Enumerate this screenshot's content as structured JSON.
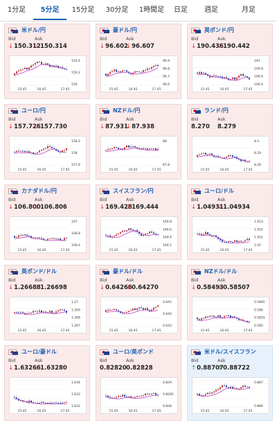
{
  "tabs": [
    {
      "label": "1分足",
      "active": false
    },
    {
      "label": "5分足",
      "active": true
    },
    {
      "label": "15分足",
      "active": false
    },
    {
      "label": "30分足",
      "active": false
    },
    {
      "label": "1時間足",
      "active": false
    },
    {
      "label": "日足",
      "active": false
    },
    {
      "label": "週足",
      "active": false
    },
    {
      "label": "月足",
      "active": false
    }
  ],
  "labels": {
    "bid": "Bid",
    "ask": "Ask"
  },
  "pairs": [
    {
      "name": "米ドル/円",
      "bid": "150.312",
      "ask": "150.314",
      "dir": "down",
      "y_ticks": [
        "150.4",
        "150.2",
        "150"
      ],
      "x_ticks": [
        "15:45",
        "16:45",
        "17:45"
      ]
    },
    {
      "name": "豪ドル/円",
      "bid": "96.602",
      "ask": "96.607",
      "dir": "down",
      "y_ticks": [
        "96.9",
        "96.8",
        "96.7",
        "96.6"
      ],
      "x_ticks": [
        "15:45",
        "16:45",
        "17:45"
      ]
    },
    {
      "name": "英ポンド/円",
      "bid": "190.436",
      "ask": "190.442",
      "dir": "down",
      "y_ticks": [
        "191",
        "190.8",
        "190.6",
        "190.4"
      ],
      "x_ticks": [
        "15:45",
        "16:45",
        "17:45"
      ]
    },
    {
      "name": "ユーロ/円",
      "bid": "157.726",
      "ask": "157.730",
      "dir": "down",
      "y_ticks": [
        "158.2",
        "158",
        "157.8"
      ],
      "x_ticks": [
        "15:45",
        "16:45",
        "17:45"
      ]
    },
    {
      "name": "NZドル/円",
      "bid": "87.931",
      "ask": "87.938",
      "dir": "down",
      "y_ticks": [
        "88",
        "87.8"
      ],
      "x_ticks": [
        "15:45",
        "16:45",
        "17:45"
      ]
    },
    {
      "name": "ランド/円",
      "bid": "8.270",
      "ask": "8.279",
      "dir": "none",
      "y_ticks": [
        "8.3",
        "8.29",
        "8.28"
      ],
      "x_ticks": [
        "15:45",
        "16:45",
        "17:45"
      ]
    },
    {
      "name": "カナダドル/円",
      "bid": "106.800",
      "ask": "106.806",
      "dir": "down",
      "y_ticks": [
        "107",
        "106.8",
        "106.6"
      ],
      "x_ticks": [
        "15:45",
        "16:45",
        "17:45"
      ]
    },
    {
      "name": "スイスフラン/円",
      "bid": "169.428",
      "ask": "169.444",
      "dir": "down",
      "y_ticks": [
        "169.8",
        "169.6",
        "169.4",
        "169.2"
      ],
      "x_ticks": [
        "15:45",
        "16:45",
        "17:45"
      ]
    },
    {
      "name": "ユーロ/ドル",
      "bid": "1.04931",
      "ask": "1.04934",
      "dir": "down",
      "y_ticks": [
        "1.053",
        "1.052",
        "1.051",
        "1.05"
      ],
      "x_ticks": [
        "15:45",
        "16:45",
        "17:45"
      ]
    },
    {
      "name": "英ポンド/ドル",
      "bid": "1.26688",
      "ask": "1.26698",
      "dir": "down",
      "y_ticks": [
        "1.27",
        "1.269",
        "1.268",
        "1.267"
      ],
      "x_ticks": [
        "15:45",
        "16:45",
        "17:45"
      ]
    },
    {
      "name": "豪ドル/ドル",
      "bid": "0.64266",
      "ask": "0.64270",
      "dir": "down",
      "y_ticks": [
        "0.645",
        "0.644",
        "0.643"
      ],
      "x_ticks": [
        "15:45",
        "16:45",
        "17:45"
      ]
    },
    {
      "name": "NZドル/ドル",
      "bid": "0.58493",
      "ask": "0.58507",
      "dir": "down",
      "y_ticks": [
        "0.5865",
        "0.586",
        "0.5855",
        "0.585"
      ],
      "x_ticks": [
        "15:45",
        "16:45",
        "17:45"
      ]
    },
    {
      "name": "ユーロ/豪ドル",
      "bid": "1.63266",
      "ask": "1.63280",
      "dir": "down",
      "y_ticks": [
        "1.634",
        "1.633",
        "1.632"
      ],
      "x_ticks": [
        "15:45",
        "16:45",
        "17:45"
      ]
    },
    {
      "name": "ユーロ/英ポンド",
      "bid": "0.82820",
      "ask": "0.82828",
      "dir": "none",
      "y_ticks": [
        "0.829",
        "0.8285",
        "0.828"
      ],
      "x_ticks": [
        "15:45",
        "16:45",
        "17:45"
      ]
    },
    {
      "name": "米ドル/スイスフラン",
      "bid": "0.88707",
      "ask": "0.88722",
      "dir": "up",
      "y_ticks": [
        "0.887",
        "0.886"
      ],
      "x_ticks": [
        "15:45",
        "16:45",
        "17:45"
      ]
    }
  ],
  "colors": {
    "down_bg": "#fbeaea",
    "up_bg": "#e8f1fb",
    "bull": "#d03030",
    "bear": "#1f47b8",
    "ma": "#c040c0",
    "down_arrow": "#d33",
    "up_arrow": "#2a9d3a",
    "link": "#1a5fb4"
  }
}
